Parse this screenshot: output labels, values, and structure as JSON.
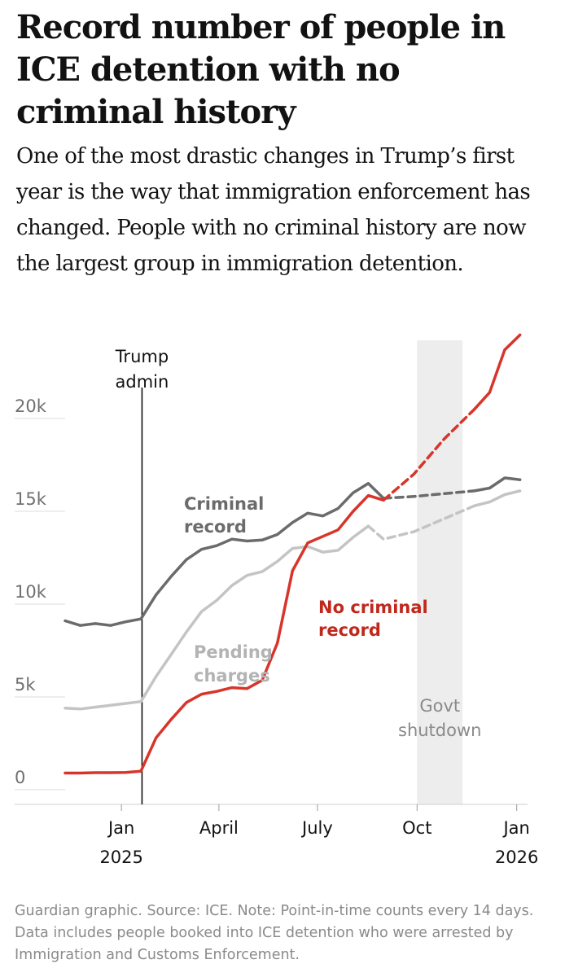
{
  "headline": "Record number of people in ICE detention with no criminal history",
  "standfirst": "One of the most drastic changes in Trump’s first year is the way that immigration enforcement has changed. People with no criminal history are now the largest group in immigration detention.",
  "footnote": "Guardian graphic. Source: ICE. Note: Point-in-time counts every 14 days. Data includes people booked into ICE detention who were arrested by Immigration and Customs Enforcement.",
  "colors": {
    "criminal": "#6b6b6b",
    "pending": "#c4c4c4",
    "no_criminal": "#d8352a",
    "shade": "#ededed",
    "axis_text": "#707070",
    "grid": "#dcdcdc",
    "admin_line": "#121212"
  },
  "chart_data": {
    "type": "line",
    "ylim": [
      0,
      25000
    ],
    "y_ticks": [
      {
        "value": 0,
        "label": "0"
      },
      {
        "value": 5000,
        "label": "5k"
      },
      {
        "value": 10000,
        "label": "10k"
      },
      {
        "value": 15000,
        "label": "15k"
      },
      {
        "value": 20000,
        "label": "20k"
      }
    ],
    "x_range": [
      "2024-11-10",
      "2026-01-05"
    ],
    "x_ticks": [
      {
        "date": "2025-01-01",
        "label": "Jan",
        "label2": "2025"
      },
      {
        "date": "2025-04-01",
        "label": "April",
        "label2": ""
      },
      {
        "date": "2025-07-01",
        "label": "July",
        "label2": ""
      },
      {
        "date": "2025-10-01",
        "label": "Oct",
        "label2": ""
      },
      {
        "date": "2026-01-01",
        "label": "Jan",
        "label2": "2026"
      }
    ],
    "annotations": {
      "trump_admin": {
        "date": "2025-01-20",
        "label_line1": "Trump",
        "label_line2": "admin"
      },
      "shutdown": {
        "start": "2025-10-01",
        "end": "2025-11-12",
        "label_line1": "Govt",
        "label_line2": "shutdown"
      }
    },
    "series": [
      {
        "key": "criminal",
        "name_line1": "Criminal",
        "name_line2": "record",
        "solid": {
          "x": [
            "2024-11-10",
            "2024-11-24",
            "2024-12-08",
            "2024-12-22",
            "2025-01-05",
            "2025-01-19",
            "2025-02-02",
            "2025-02-16",
            "2025-03-02",
            "2025-03-16",
            "2025-03-30",
            "2025-04-13",
            "2025-04-27",
            "2025-05-11",
            "2025-05-25",
            "2025-06-08",
            "2025-06-22",
            "2025-07-06",
            "2025-07-20",
            "2025-08-03",
            "2025-08-17",
            "2025-08-31"
          ],
          "y": [
            9100,
            8850,
            8950,
            8850,
            9050,
            9200,
            10500,
            11500,
            12400,
            12950,
            13150,
            13500,
            13400,
            13450,
            13750,
            14400,
            14900,
            14750,
            15150,
            16000,
            16500,
            15700
          ]
        },
        "dashed": {
          "x": [
            "2025-08-31",
            "2025-09-28",
            "2025-10-26",
            "2025-11-23"
          ],
          "y": [
            15700,
            15800,
            15950,
            16100
          ]
        },
        "solid_after": {
          "x": [
            "2025-11-23",
            "2025-12-07",
            "2025-12-21",
            "2026-01-04"
          ],
          "y": [
            16100,
            16250,
            16800,
            16700
          ]
        }
      },
      {
        "key": "pending",
        "name_line1": "Pending",
        "name_line2": "charges",
        "solid": {
          "x": [
            "2024-11-10",
            "2024-11-24",
            "2024-12-08",
            "2024-12-22",
            "2025-01-05",
            "2025-01-19",
            "2025-02-02",
            "2025-02-16",
            "2025-03-02",
            "2025-03-16",
            "2025-03-30",
            "2025-04-13",
            "2025-04-27",
            "2025-05-11",
            "2025-05-25",
            "2025-06-08",
            "2025-06-22",
            "2025-07-06",
            "2025-07-20",
            "2025-08-03",
            "2025-08-17"
          ],
          "y": [
            4400,
            4350,
            4450,
            4550,
            4650,
            4750,
            6100,
            7300,
            8500,
            9600,
            10200,
            11000,
            11550,
            11750,
            12300,
            13000,
            13100,
            12800,
            12900,
            13600,
            14200
          ]
        },
        "dashed": {
          "x": [
            "2025-08-17",
            "2025-08-31",
            "2025-09-28",
            "2025-10-26",
            "2025-11-23"
          ],
          "y": [
            14200,
            13500,
            13900,
            14600,
            15300
          ]
        },
        "solid_after": {
          "x": [
            "2025-11-23",
            "2025-12-07",
            "2025-12-21",
            "2026-01-04"
          ],
          "y": [
            15300,
            15500,
            15900,
            16100
          ]
        }
      },
      {
        "key": "no_criminal",
        "name_line1": "No criminal",
        "name_line2": "record",
        "solid": {
          "x": [
            "2024-11-10",
            "2024-11-24",
            "2024-12-08",
            "2024-12-22",
            "2025-01-05",
            "2025-01-19",
            "2025-02-02",
            "2025-02-16",
            "2025-03-02",
            "2025-03-16",
            "2025-03-30",
            "2025-04-13",
            "2025-04-27",
            "2025-05-11",
            "2025-05-25",
            "2025-06-08",
            "2025-06-22",
            "2025-07-06",
            "2025-07-20",
            "2025-08-03",
            "2025-08-17",
            "2025-08-31"
          ],
          "y": [
            900,
            900,
            920,
            920,
            930,
            1000,
            2800,
            3800,
            4700,
            5150,
            5300,
            5500,
            5450,
            5900,
            7900,
            11800,
            13300,
            13650,
            14000,
            15000,
            15850,
            15600
          ]
        },
        "dashed": {
          "x": [
            "2025-08-31",
            "2025-09-28",
            "2025-10-26",
            "2025-11-23"
          ],
          "y": [
            15600,
            17000,
            18900,
            20500
          ]
        },
        "solid_after": {
          "x": [
            "2025-11-23",
            "2025-12-07",
            "2025-12-21",
            "2026-01-04"
          ],
          "y": [
            20500,
            21400,
            23700,
            24500
          ]
        }
      }
    ]
  }
}
